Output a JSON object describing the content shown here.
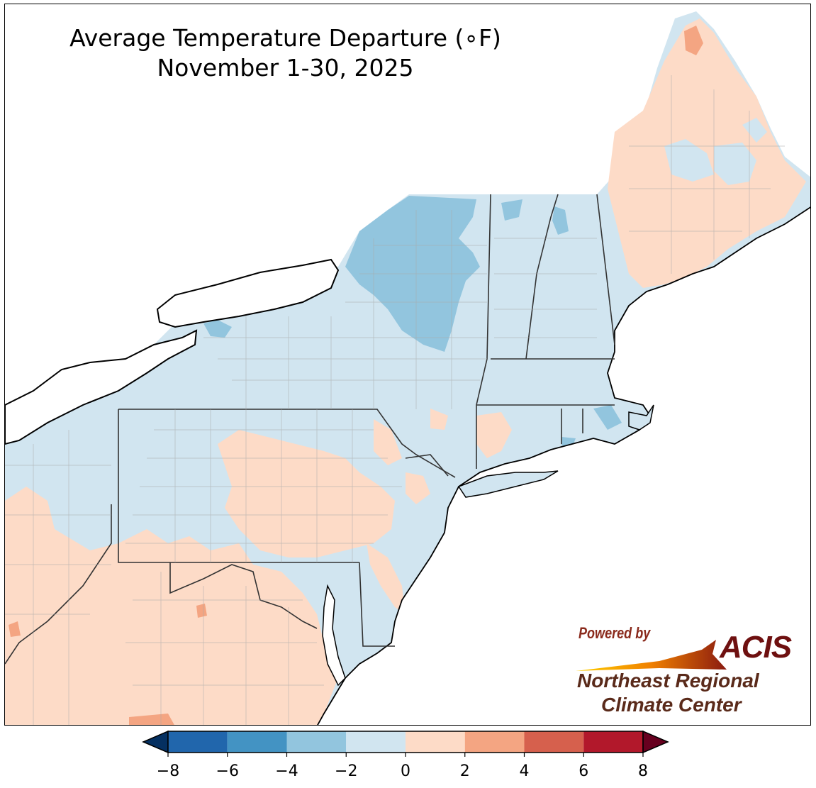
{
  "title": {
    "line1": "Average Temperature Departure (∘F)",
    "line2": "November 1-30, 2025"
  },
  "colors": {
    "frame": "#000000",
    "water": "#ffffff",
    "state_border": "#333333",
    "county_border": "#a9a9a9"
  },
  "map_legend": {
    "type": "colorbar",
    "bins": [
      {
        "min": -8,
        "max": -6,
        "color": "#2166ac"
      },
      {
        "min": -6,
        "max": -4,
        "color": "#4393c3"
      },
      {
        "min": -4,
        "max": -2,
        "color": "#92c5de"
      },
      {
        "min": -2,
        "max": 0,
        "color": "#d1e5f0"
      },
      {
        "min": 0,
        "max": 2,
        "color": "#fddbc7"
      },
      {
        "min": 2,
        "max": 4,
        "color": "#f4a582"
      },
      {
        "min": 4,
        "max": 6,
        "color": "#d6604d"
      },
      {
        "min": 6,
        "max": 8,
        "color": "#b2182b"
      }
    ],
    "under_color": "#053061",
    "over_color": "#67001f",
    "ticks": [
      "−8",
      "−6",
      "−4",
      "−2",
      "0",
      "2",
      "4",
      "6",
      "8"
    ]
  },
  "logo": {
    "powered_by": "Powered by",
    "acis": "ACIS",
    "org_line1": "Northeast Regional",
    "org_line2": "Climate Center"
  }
}
